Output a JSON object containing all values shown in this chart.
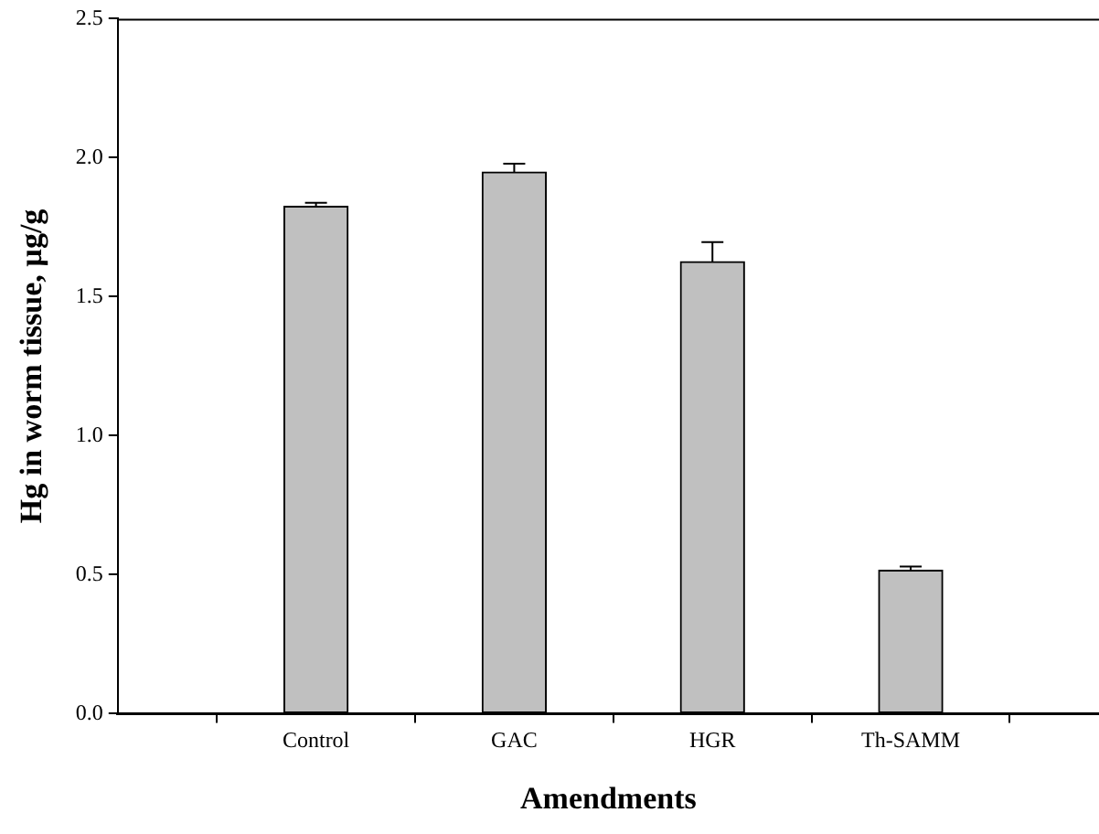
{
  "chart_data": {
    "type": "bar",
    "xlabel": "Amendments",
    "ylabel": "Hg in worm tissue, µg/g",
    "categories": [
      "Control",
      "GAC",
      "HGR",
      "Th-SAMM"
    ],
    "values": [
      1.825,
      1.948,
      1.626,
      0.516
    ],
    "errors": [
      0.013,
      0.03,
      0.07,
      0.013
    ],
    "color": "#c0c0c0",
    "ylim": [
      0,
      2.5
    ],
    "yticks": [
      {
        "value": 0,
        "label": "0.0"
      },
      0.5,
      {
        "value": 1,
        "label": "1.0"
      },
      1.5,
      {
        "value": 2,
        "label": "2.0"
      },
      2.5
    ],
    "grid": false,
    "legend": false
  }
}
